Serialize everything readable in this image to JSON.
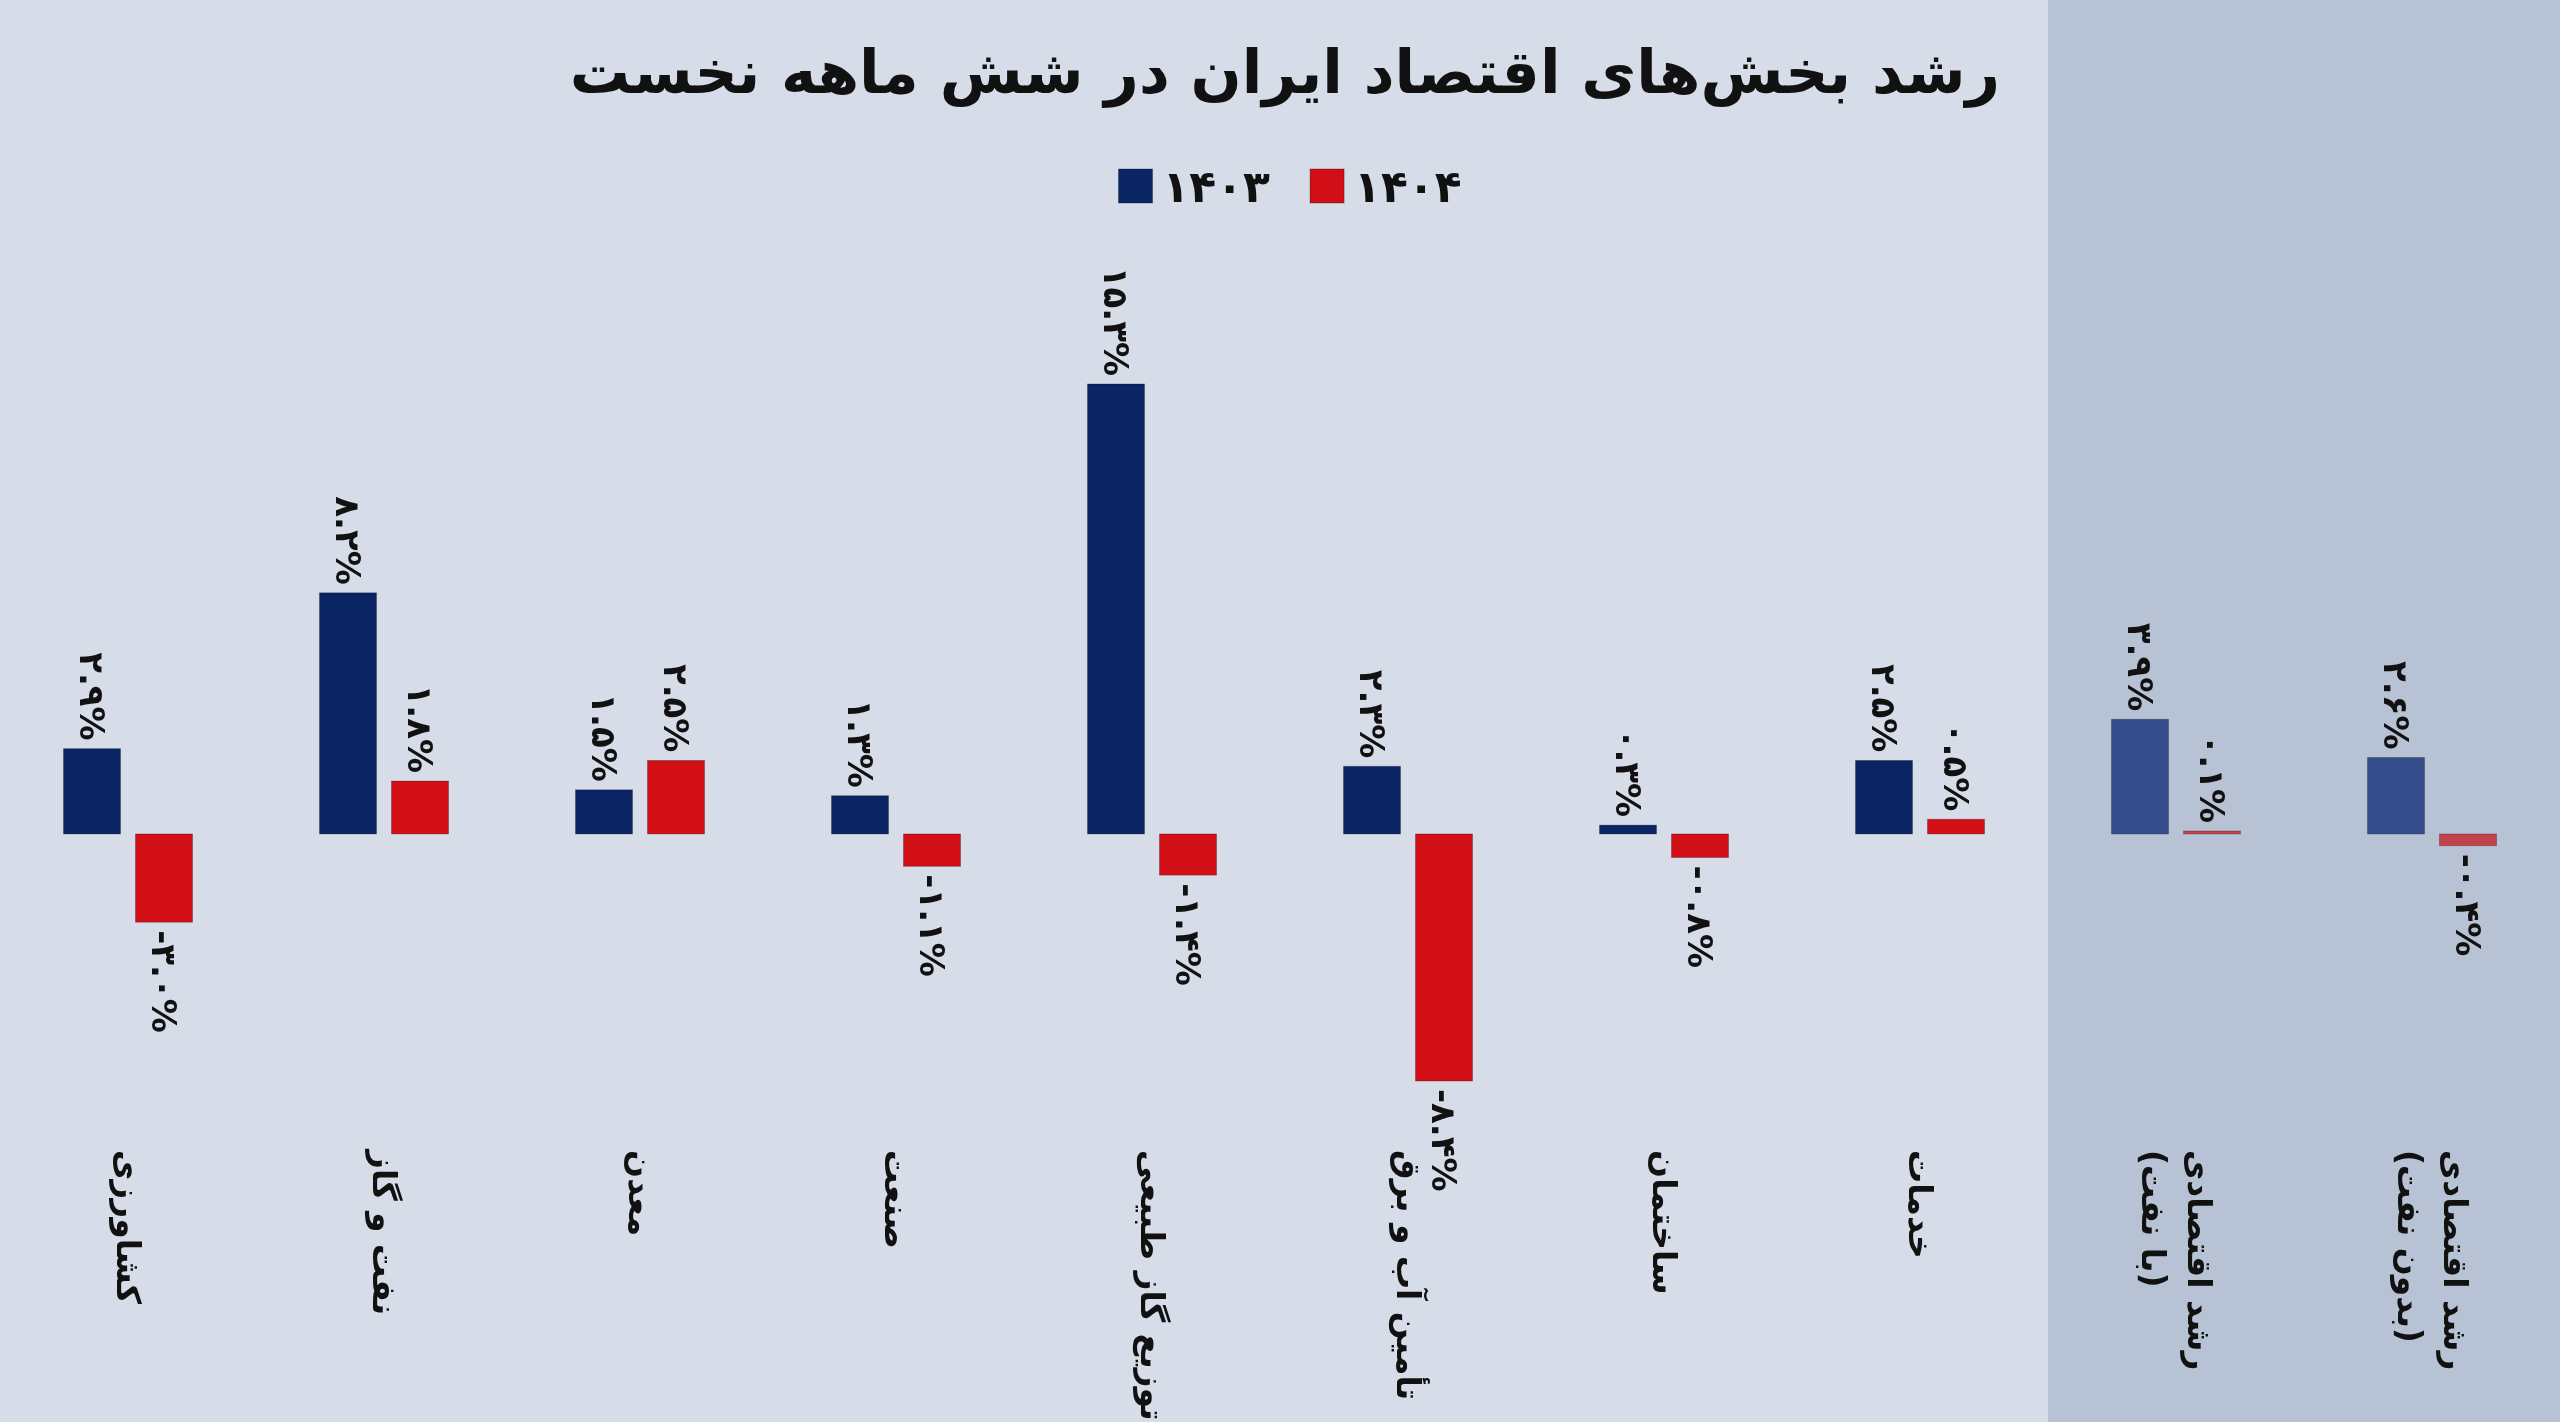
{
  "chart_data": {
    "type": "bar",
    "title": "رشد بخش‌های اقتصاد ایران در شش ماهه نخست",
    "categories": [
      "کشاورزی",
      "نفت و گاز",
      "معدن",
      "صنعت",
      "توزیع گاز طبیعی",
      "تأمین آب و برق",
      "ساختمان",
      "خدمات",
      "رشد اقتصادی\n(با نفت)",
      "رشد اقتصادی\n(بدون نفت)"
    ],
    "series": [
      {
        "name": "۱۴۰۳",
        "color": "#0b2463",
        "colors": [
          "#0b2463",
          "#0b2463",
          "#0b2463",
          "#0b2463",
          "#0b2463",
          "#0b2463",
          "#0b2463",
          "#0b2463",
          "#344f8c",
          "#344f8c"
        ],
        "values": [
          2.9,
          8.2,
          1.5,
          1.3,
          15.3,
          2.3,
          0.3,
          2.5,
          3.9,
          2.6
        ],
        "value_labels": [
          "۲.۹%",
          "۸.۲%",
          "۱.۵%",
          "۱.۳%",
          "۱۵.۳%",
          "۲.۳%",
          "۰.۳%",
          "۲.۵%",
          "۳.۹%",
          "۲.۶%"
        ]
      },
      {
        "name": "۱۴۰۴",
        "color": "#d20f16",
        "colors": [
          "#d20f16",
          "#d20f16",
          "#d20f16",
          "#d20f16",
          "#d20f16",
          "#d20f16",
          "#d20f16",
          "#d20f16",
          "#c2424c",
          "#c2424c"
        ],
        "values": [
          -3.0,
          1.8,
          2.5,
          -1.1,
          -1.4,
          -8.4,
          -0.8,
          0.5,
          0.1,
          -0.4
        ],
        "value_labels": [
          "-۳.۰%",
          "۱.۸%",
          "۲.۵%",
          "-۱.۱%",
          "-۱.۴%",
          "-۸.۴%",
          "-۰.۸%",
          "۰.۵%",
          "۰.۱%",
          "-۰.۴%"
        ]
      }
    ],
    "bands": [
      {
        "axis": "x",
        "from": "رشد اقتصادی\n(با نفت)",
        "to": "رشد اقتصادی\n(بدون نفت)",
        "color": "#b7c3d4"
      }
    ],
    "legend": "top"
  }
}
